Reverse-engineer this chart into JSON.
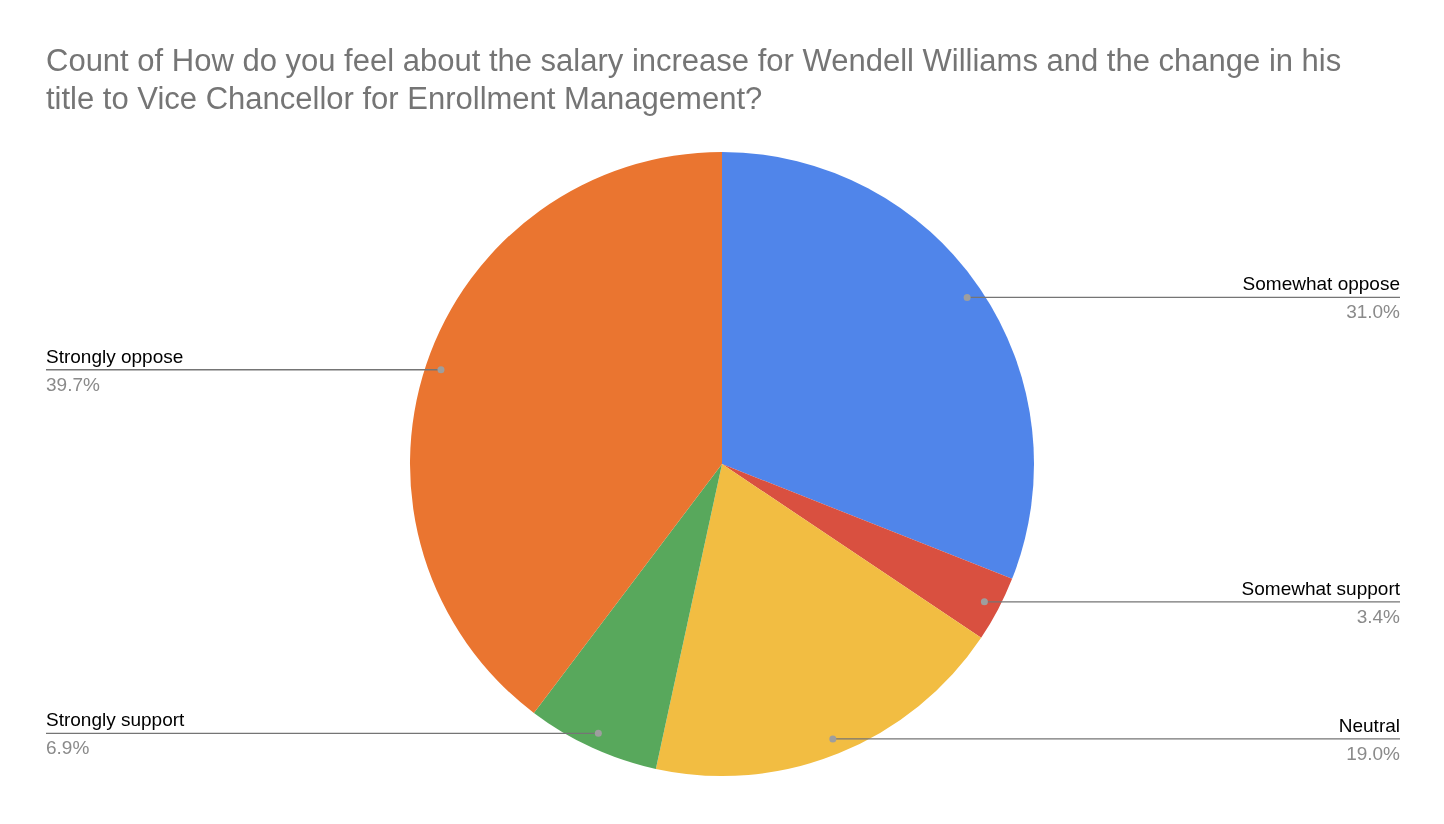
{
  "chart_data": {
    "type": "pie",
    "title": "Count of How do you feel about the salary increase for Wendell Williams and the change in his title to Vice Chancellor for Enrollment Management?",
    "categories": [
      "Somewhat oppose",
      "Somewhat support",
      "Neutral",
      "Strongly support",
      "Strongly oppose"
    ],
    "values": [
      31.0,
      3.4,
      19.0,
      6.9,
      39.7
    ],
    "value_labels": [
      "31.0%",
      "3.4%",
      "19.0%",
      "6.9%",
      "39.7%"
    ],
    "colors": [
      "#5085ea",
      "#d95040",
      "#f2bd42",
      "#58a85c",
      "#ea7530"
    ]
  }
}
